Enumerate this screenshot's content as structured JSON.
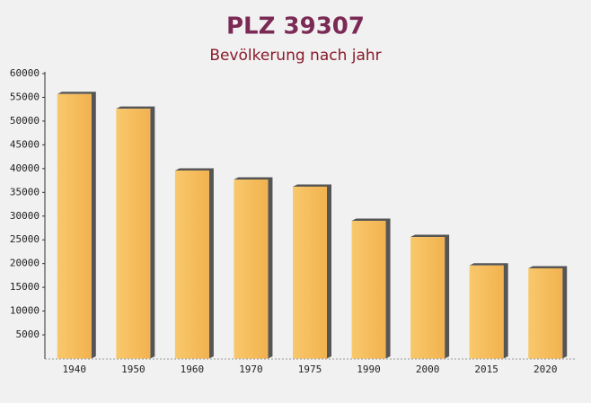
{
  "chart_data": {
    "type": "bar",
    "title": "PLZ 39307",
    "subtitle": "Bevölkerung nach jahr",
    "categories": [
      "1940",
      "1950",
      "1960",
      "1970",
      "1975",
      "1990",
      "2000",
      "2015",
      "2020"
    ],
    "values": [
      55700,
      52600,
      39600,
      37700,
      36200,
      29000,
      25600,
      19600,
      19000
    ],
    "color": "#f5bd5b",
    "ylim": [
      0,
      60000
    ],
    "yticks": [
      5000,
      10000,
      15000,
      20000,
      25000,
      30000,
      35000,
      40000,
      45000,
      50000,
      55000,
      60000
    ],
    "grid": false
  }
}
